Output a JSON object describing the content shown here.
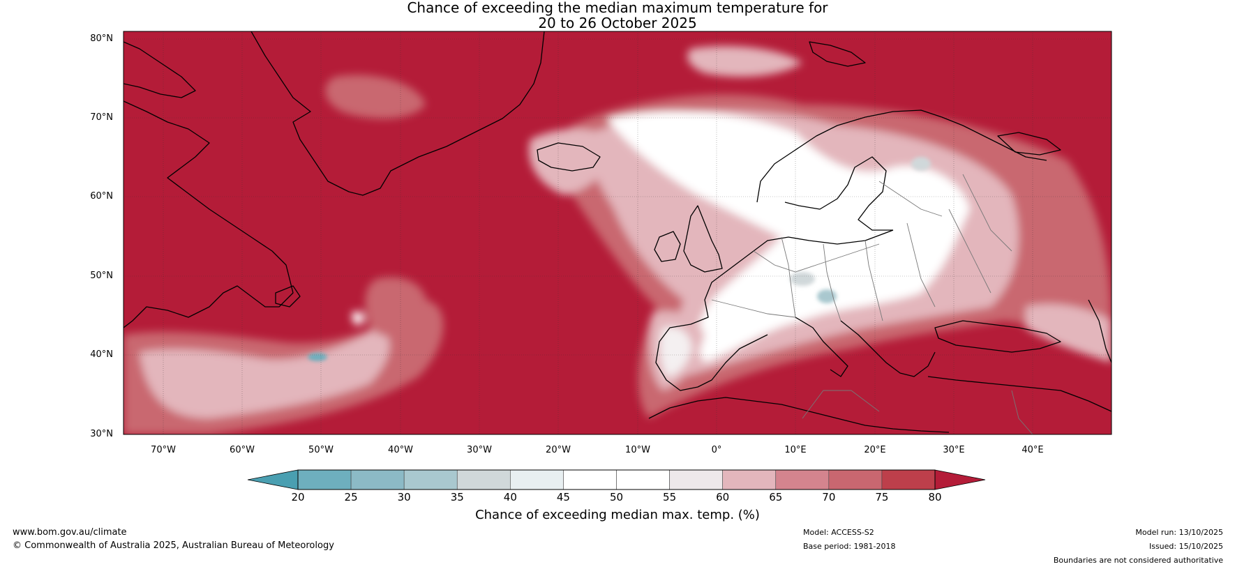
{
  "title": {
    "line1": "Chance of exceeding the median maximum temperature for",
    "line2": "20 to 26 October 2025"
  },
  "map": {
    "lat_labels": [
      "80°N",
      "70°N",
      "60°N",
      "50°N",
      "40°N",
      "30°N"
    ],
    "lon_labels": [
      "70°W",
      "60°W",
      "50°W",
      "40°W",
      "30°W",
      "20°W",
      "10°W",
      "0°",
      "10°E",
      "20°E",
      "30°E",
      "40°E"
    ],
    "lat_range": [
      30,
      81
    ],
    "lon_range": [
      -75,
      50
    ],
    "background_color": "#b41c38",
    "land_outline_color": "#000000",
    "gridlines": true
  },
  "colorbar": {
    "ticks": [
      "20",
      "25",
      "30",
      "35",
      "40",
      "45",
      "50",
      "55",
      "60",
      "65",
      "70",
      "75",
      "80"
    ],
    "colors": [
      "#4a9fb1",
      "#6eafbe",
      "#8cbac6",
      "#a9c8cf",
      "#d0d8da",
      "#e8eff1",
      "#ffffff",
      "#ffffff",
      "#eee8ea",
      "#e3b6bc",
      "#d4848e",
      "#c96770",
      "#bd3f4b",
      "#b41c38"
    ],
    "label": "Chance of exceeding median max. temp. (%)"
  },
  "footer": {
    "website": "www.bom.gov.au/climate",
    "copyright": "© Commonwealth of Australia 2025, Australian Bureau of Meteorology",
    "model": "Model: ACCESS-S2",
    "base_period": "Base period: 1981-2018",
    "model_run": "Model run: 13/10/2025",
    "issued": "Issued: 15/10/2025",
    "disclaimer": "Boundaries are not considered authoritative"
  }
}
